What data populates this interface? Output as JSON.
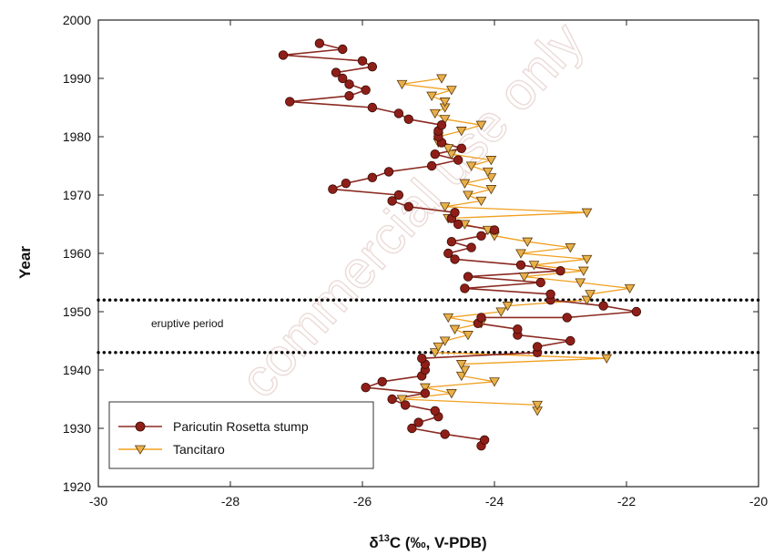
{
  "chart_data": {
    "type": "line",
    "xlabel": "δ13C (‰, V-PDB)",
    "xlabel_parts": {
      "delta": "δ",
      "superscript": "13",
      "rest": "C (‰, V-PDB)"
    },
    "ylabel": "Year",
    "xlim": [
      -30,
      -20
    ],
    "ylim": [
      1920,
      2000
    ],
    "x_ticks": [
      -30,
      -28,
      -26,
      -24,
      -22,
      -20
    ],
    "y_ticks": [
      1920,
      1930,
      1940,
      1950,
      1960,
      1970,
      1980,
      1990,
      2000
    ],
    "x_tick_labels": [
      "-30",
      "-28",
      "-26",
      "-24",
      "-22",
      "-20"
    ],
    "y_tick_labels": [
      "1920",
      "1930",
      "1940",
      "1950",
      "1960",
      "1970",
      "1980",
      "1990",
      "2000"
    ],
    "grid": false,
    "legend_position": "bottom-left",
    "annotations": [
      {
        "text": "eruptive period",
        "x": -29.2,
        "y": 1948
      }
    ],
    "reference_lines": [
      {
        "orientation": "horizontal",
        "y": 1952,
        "style": "dotted"
      },
      {
        "orientation": "horizontal",
        "y": 1943,
        "style": "dotted"
      }
    ],
    "series": [
      {
        "name": "Paricutin Rosetta stump",
        "marker": "circle",
        "line_color": "#8b2a22",
        "marker_fill": "#8e1f18",
        "points": [
          {
            "x": -24.2,
            "y": 1927
          },
          {
            "x": -24.15,
            "y": 1928
          },
          {
            "x": -24.75,
            "y": 1929
          },
          {
            "x": -25.25,
            "y": 1930
          },
          {
            "x": -25.15,
            "y": 1931
          },
          {
            "x": -24.85,
            "y": 1932
          },
          {
            "x": -24.9,
            "y": 1933
          },
          {
            "x": -25.35,
            "y": 1934
          },
          {
            "x": -25.55,
            "y": 1935
          },
          {
            "x": -25.05,
            "y": 1936
          },
          {
            "x": -25.95,
            "y": 1937
          },
          {
            "x": -25.7,
            "y": 1938
          },
          {
            "x": -25.1,
            "y": 1939
          },
          {
            "x": -25.05,
            "y": 1940
          },
          {
            "x": -25.05,
            "y": 1941
          },
          {
            "x": -25.1,
            "y": 1942
          },
          {
            "x": -23.35,
            "y": 1943
          },
          {
            "x": -23.35,
            "y": 1944
          },
          {
            "x": -22.85,
            "y": 1945
          },
          {
            "x": -23.65,
            "y": 1946
          },
          {
            "x": -23.65,
            "y": 1947
          },
          {
            "x": -24.25,
            "y": 1948
          },
          {
            "x": -24.2,
            "y": 1949
          },
          {
            "x": -22.9,
            "y": 1949
          },
          {
            "x": -21.85,
            "y": 1950
          },
          {
            "x": -22.35,
            "y": 1951
          },
          {
            "x": -23.15,
            "y": 1952
          },
          {
            "x": -23.15,
            "y": 1953
          },
          {
            "x": -24.45,
            "y": 1954
          },
          {
            "x": -23.3,
            "y": 1955
          },
          {
            "x": -24.4,
            "y": 1956
          },
          {
            "x": -23.0,
            "y": 1957
          },
          {
            "x": -23.6,
            "y": 1958
          },
          {
            "x": -24.6,
            "y": 1959
          },
          {
            "x": -24.7,
            "y": 1960
          },
          {
            "x": -24.35,
            "y": 1961
          },
          {
            "x": -24.65,
            "y": 1962
          },
          {
            "x": -24.2,
            "y": 1963
          },
          {
            "x": -24.0,
            "y": 1964
          },
          {
            "x": -24.55,
            "y": 1965
          },
          {
            "x": -24.65,
            "y": 1966
          },
          {
            "x": -24.6,
            "y": 1967
          },
          {
            "x": -25.3,
            "y": 1968
          },
          {
            "x": -25.55,
            "y": 1969
          },
          {
            "x": -25.45,
            "y": 1970
          },
          {
            "x": -26.45,
            "y": 1971
          },
          {
            "x": -26.25,
            "y": 1972
          },
          {
            "x": -25.85,
            "y": 1973
          },
          {
            "x": -25.6,
            "y": 1974
          },
          {
            "x": -24.95,
            "y": 1975
          },
          {
            "x": -24.55,
            "y": 1976
          },
          {
            "x": -24.9,
            "y": 1977
          },
          {
            "x": -24.5,
            "y": 1978
          },
          {
            "x": -24.8,
            "y": 1979
          },
          {
            "x": -24.85,
            "y": 1980
          },
          {
            "x": -24.85,
            "y": 1981
          },
          {
            "x": -24.8,
            "y": 1982
          },
          {
            "x": -25.3,
            "y": 1983
          },
          {
            "x": -25.45,
            "y": 1984
          },
          {
            "x": -25.85,
            "y": 1985
          },
          {
            "x": -27.1,
            "y": 1986
          },
          {
            "x": -26.2,
            "y": 1987
          },
          {
            "x": -25.95,
            "y": 1988
          },
          {
            "x": -26.2,
            "y": 1989
          },
          {
            "x": -26.3,
            "y": 1990
          },
          {
            "x": -26.4,
            "y": 1991
          },
          {
            "x": -25.85,
            "y": 1992
          },
          {
            "x": -26.0,
            "y": 1993
          },
          {
            "x": -27.2,
            "y": 1994
          },
          {
            "x": -26.3,
            "y": 1995
          },
          {
            "x": -26.65,
            "y": 1996
          }
        ]
      },
      {
        "name": "Tancitaro",
        "marker": "triangle-down",
        "line_color": "#f0a020",
        "marker_fill": "#e8b04a",
        "points": [
          {
            "x": -23.35,
            "y": 1933
          },
          {
            "x": -23.35,
            "y": 1934
          },
          {
            "x": -25.4,
            "y": 1935
          },
          {
            "x": -24.65,
            "y": 1936
          },
          {
            "x": -25.05,
            "y": 1937
          },
          {
            "x": -24.0,
            "y": 1938
          },
          {
            "x": -24.5,
            "y": 1939
          },
          {
            "x": -24.45,
            "y": 1940
          },
          {
            "x": -24.5,
            "y": 1941
          },
          {
            "x": -22.3,
            "y": 1942
          },
          {
            "x": -24.9,
            "y": 1943
          },
          {
            "x": -24.85,
            "y": 1944
          },
          {
            "x": -24.75,
            "y": 1945
          },
          {
            "x": -24.4,
            "y": 1946
          },
          {
            "x": -24.6,
            "y": 1947
          },
          {
            "x": -24.2,
            "y": 1948
          },
          {
            "x": -24.7,
            "y": 1949
          },
          {
            "x": -23.9,
            "y": 1950
          },
          {
            "x": -23.8,
            "y": 1951
          },
          {
            "x": -22.6,
            "y": 1952
          },
          {
            "x": -22.55,
            "y": 1953
          },
          {
            "x": -21.95,
            "y": 1954
          },
          {
            "x": -22.7,
            "y": 1955
          },
          {
            "x": -23.55,
            "y": 1956
          },
          {
            "x": -22.65,
            "y": 1957
          },
          {
            "x": -23.4,
            "y": 1958
          },
          {
            "x": -22.6,
            "y": 1959
          },
          {
            "x": -23.6,
            "y": 1960
          },
          {
            "x": -22.85,
            "y": 1961
          },
          {
            "x": -23.5,
            "y": 1962
          },
          {
            "x": -24.0,
            "y": 1963
          },
          {
            "x": -24.1,
            "y": 1964
          },
          {
            "x": -24.45,
            "y": 1965
          },
          {
            "x": -24.7,
            "y": 1966
          },
          {
            "x": -22.6,
            "y": 1967
          },
          {
            "x": -24.75,
            "y": 1968
          },
          {
            "x": -24.2,
            "y": 1969
          },
          {
            "x": -24.4,
            "y": 1970
          },
          {
            "x": -24.05,
            "y": 1971
          },
          {
            "x": -24.45,
            "y": 1972
          },
          {
            "x": -24.05,
            "y": 1973
          },
          {
            "x": -24.1,
            "y": 1974
          },
          {
            "x": -24.35,
            "y": 1975
          },
          {
            "x": -24.05,
            "y": 1976
          },
          {
            "x": -24.65,
            "y": 1977
          },
          {
            "x": -24.7,
            "y": 1978
          },
          {
            "x": -24.85,
            "y": 1979
          },
          {
            "x": -24.85,
            "y": 1980
          },
          {
            "x": -24.5,
            "y": 1981
          },
          {
            "x": -24.2,
            "y": 1982
          },
          {
            "x": -24.75,
            "y": 1983
          },
          {
            "x": -24.9,
            "y": 1984
          },
          {
            "x": -24.75,
            "y": 1985
          },
          {
            "x": -24.75,
            "y": 1986
          },
          {
            "x": -24.95,
            "y": 1987
          },
          {
            "x": -24.65,
            "y": 1988
          },
          {
            "x": -25.4,
            "y": 1989
          },
          {
            "x": -24.8,
            "y": 1990
          }
        ]
      }
    ]
  },
  "watermark_text": "commercial use only"
}
